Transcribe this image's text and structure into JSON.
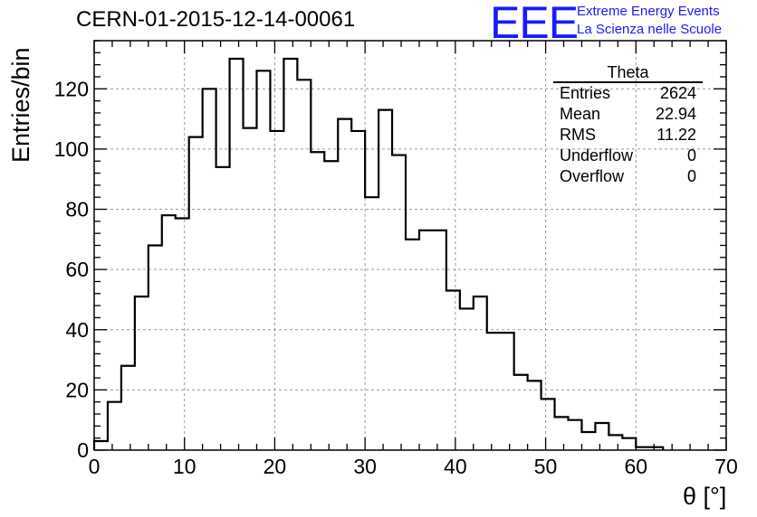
{
  "header": {
    "title": "CERN-01-2015-12-14-00061",
    "logo_text": "EEE",
    "logo_line1": "Extreme Energy Events",
    "logo_line2": "La Scienza nelle Scuole",
    "logo_color": "#1a1aff"
  },
  "stats_box": {
    "title": "Theta",
    "rows": [
      {
        "label": "Entries",
        "value": "2624"
      },
      {
        "label": "Mean",
        "value": "22.94"
      },
      {
        "label": "RMS",
        "value": "11.22"
      },
      {
        "label": "Underflow",
        "value": "0"
      },
      {
        "label": "Overflow",
        "value": "0"
      }
    ]
  },
  "chart_data": {
    "type": "histogram",
    "xlabel": "θ [°]",
    "ylabel": "Entries/bin",
    "xlim": [
      0,
      70
    ],
    "ylim": [
      0,
      136
    ],
    "x_ticks": [
      0,
      10,
      20,
      30,
      40,
      50,
      60,
      70
    ],
    "y_ticks": [
      0,
      20,
      40,
      60,
      80,
      100,
      120
    ],
    "grid": true,
    "line_color": "#000000",
    "bin_edges_start": 0,
    "bin_width": 1.5,
    "values": [
      3,
      16,
      28,
      51,
      68,
      78,
      77,
      104,
      120,
      94,
      130,
      107,
      126,
      106,
      130,
      123,
      99,
      96,
      110,
      106,
      84,
      113,
      98,
      70,
      73,
      73,
      53,
      47,
      51,
      39,
      39,
      25,
      23,
      17,
      11,
      10,
      6,
      9,
      5,
      4,
      1,
      1
    ]
  }
}
